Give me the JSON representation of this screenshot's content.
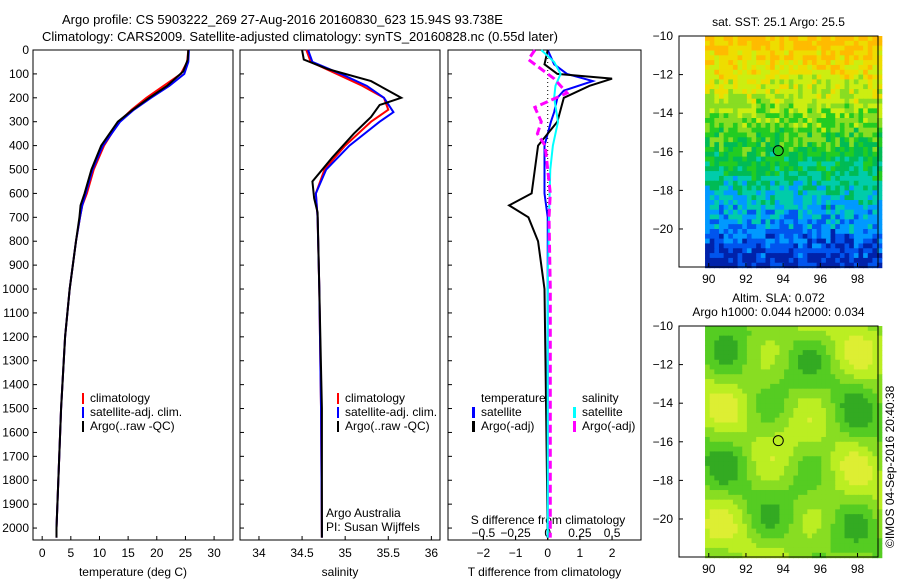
{
  "header": {
    "line1": "Argo profile: CS 5903222_269 27-Aug-2016 20160830_623 15.94S 93.738E",
    "line2": "Climatology: CARS2009. Satellite-adjusted climatology: synTS_20160828.nc (0.55d later)"
  },
  "copyright": "©IMOS 04-Sep-2016 20:40:38",
  "chart_data": [
    {
      "type": "line",
      "name": "temperature",
      "xlabel": "temperature (deg C)",
      "ylabel": "depth",
      "xlim": [
        -1.6,
        33.3
      ],
      "ylim": [
        2050,
        0
      ],
      "xticks": [
        0,
        5,
        10,
        15,
        20,
        25,
        30
      ],
      "yticks": [
        0,
        100,
        200,
        300,
        400,
        500,
        600,
        700,
        800,
        900,
        1000,
        1100,
        1200,
        1300,
        1400,
        1500,
        1600,
        1700,
        1800,
        1900,
        2000
      ],
      "legend": [
        "climatology",
        "satellite-adj. clim.",
        "Argo(..raw -QC)"
      ],
      "series": [
        {
          "name": "climatology",
          "color": "#ff0000",
          "depth": [
            0,
            50,
            100,
            150,
            200,
            250,
            300,
            400,
            500,
            600,
            650,
            700,
            800,
            1000,
            1200,
            1500,
            2000,
            2040
          ],
          "values": [
            25.5,
            25.3,
            24.2,
            21.2,
            18.2,
            15.6,
            13.4,
            10.8,
            9,
            7.8,
            7,
            6.6,
            5.9,
            4.8,
            4.0,
            3.3,
            2.5,
            2.5
          ]
        },
        {
          "name": "satellite-adj. clim.",
          "color": "#0000ff",
          "depth": [
            0,
            50,
            100,
            150,
            200,
            250,
            300,
            400,
            500,
            600,
            650,
            700,
            800,
            1000,
            1200,
            1500,
            2000,
            2040
          ],
          "values": [
            25.6,
            25.5,
            24.8,
            22.2,
            19,
            16,
            13.6,
            10.6,
            8.8,
            7.6,
            7.0,
            6.6,
            5.9,
            4.8,
            4.0,
            3.3,
            2.5,
            2.5
          ]
        },
        {
          "name": "Argo(..raw -QC)",
          "color": "#000000",
          "depth": [
            0,
            40,
            90,
            150,
            200,
            250,
            300,
            400,
            500,
            600,
            650,
            700,
            800,
            1000,
            1200,
            1500,
            2000,
            2040
          ],
          "values": [
            25.5,
            25.4,
            24.6,
            21.8,
            18.7,
            15.8,
            13.2,
            10.3,
            8.6,
            7.4,
            6.7,
            6.5,
            5.9,
            4.8,
            4.0,
            3.3,
            2.5,
            2.5
          ]
        }
      ]
    },
    {
      "type": "line",
      "name": "salinity",
      "xlabel": "salinity",
      "xlim": [
        33.78,
        36.1
      ],
      "ylim": [
        2050,
        0
      ],
      "xticks": [
        34,
        34.5,
        35,
        35.5,
        36
      ],
      "legend": [
        "climatology",
        "satellite-adj. clim.",
        "Argo(..raw -QC)"
      ],
      "annotation": [
        "Argo Australia",
        "PI: Susan Wijffels"
      ],
      "series": [
        {
          "name": "climatology",
          "color": "#ff0000",
          "depth": [
            0,
            50,
            100,
            150,
            200,
            250,
            300,
            400,
            500,
            600,
            700,
            1000,
            1500,
            2040
          ],
          "values": [
            34.55,
            34.6,
            34.9,
            35.2,
            35.45,
            35.5,
            35.3,
            35.0,
            34.76,
            34.66,
            34.68,
            34.7,
            34.72,
            34.73
          ]
        },
        {
          "name": "satellite-adj. clim.",
          "color": "#0000ff",
          "depth": [
            0,
            50,
            100,
            150,
            200,
            260,
            300,
            400,
            500,
            600,
            700,
            1000,
            1500,
            2040
          ],
          "values": [
            34.57,
            34.62,
            34.95,
            35.25,
            35.45,
            35.56,
            35.4,
            35.05,
            34.78,
            34.66,
            34.68,
            34.7,
            34.72,
            34.73
          ]
        },
        {
          "name": "Argo(..raw -QC)",
          "color": "#000000",
          "depth": [
            0,
            40,
            80,
            130,
            180,
            200,
            230,
            280,
            350,
            450,
            550,
            620,
            680,
            1000,
            1500,
            2040
          ],
          "values": [
            34.5,
            34.52,
            34.8,
            35.3,
            35.55,
            35.65,
            35.4,
            35.3,
            35.1,
            34.85,
            34.62,
            34.64,
            34.68,
            34.7,
            34.73,
            34.73
          ]
        }
      ]
    },
    {
      "type": "line",
      "name": "difference",
      "xlabel": "T difference from climatology",
      "x2label": "S difference from climatology",
      "xlim": [
        -3.1,
        2.9
      ],
      "ylim": [
        2050,
        0
      ],
      "xticks": [
        -2,
        -1,
        0,
        1,
        2
      ],
      "x2ticks": [
        -0.5,
        -0.25,
        0,
        0.25,
        0.5
      ],
      "legend_temperature": {
        "title": "temperature",
        "items": [
          "satellite",
          "Argo(-adj)"
        ]
      },
      "legend_salinity": {
        "title": "salinity",
        "items": [
          "satellite",
          "Argo(-adj)"
        ]
      },
      "series": [
        {
          "name": "temperature satellite",
          "color": "#0000ff",
          "units": "T",
          "depth": [
            0,
            60,
            100,
            130,
            170,
            200,
            260,
            300,
            400,
            500,
            600,
            700,
            1000,
            1500,
            2040
          ],
          "values": [
            0,
            0.2,
            0.6,
            1.4,
            0.5,
            0.3,
            0.2,
            0.1,
            -0.1,
            -0.1,
            -0.1,
            0,
            0,
            0,
            0
          ]
        },
        {
          "name": "temperature Argo(-adj)",
          "color": "#000000",
          "depth": [
            0,
            60,
            100,
            120,
            150,
            200,
            250,
            300,
            400,
            500,
            600,
            650,
            700,
            800,
            1000,
            1500,
            2040
          ],
          "units": "T",
          "values": [
            0,
            -0.1,
            0.3,
            2.0,
            1.3,
            0.5,
            0.4,
            0.3,
            -0.3,
            -0.4,
            -0.5,
            -1.2,
            -0.6,
            -0.3,
            -0.1,
            -0.05,
            0
          ]
        },
        {
          "name": "salinity satellite",
          "color": "#00ffff",
          "units": "S",
          "depth": [
            0,
            50,
            100,
            150,
            200,
            300,
            400,
            500,
            700,
            1000,
            2040
          ],
          "values": [
            -0.05,
            0.05,
            0.1,
            0.06,
            0.05,
            0.08,
            0.04,
            0.02,
            0.01,
            0,
            0
          ]
        },
        {
          "name": "salinity Argo(-adj)",
          "color": "#ff00ff",
          "units": "S",
          "depth": [
            0,
            40,
            80,
            120,
            180,
            240,
            300,
            350,
            400,
            500,
            600,
            700,
            1000,
            1500,
            2040
          ],
          "values": [
            -0.1,
            -0.15,
            -0.05,
            0.05,
            0.15,
            -0.1,
            -0.05,
            -0.08,
            -0.02,
            0,
            0.02,
            0.01,
            0.02,
            0.02,
            0.02
          ]
        }
      ]
    },
    {
      "type": "heatmap",
      "name": "sst-map",
      "title": "sat. SST: 25.1 Argo: 25.5",
      "xlim": [
        88.4,
        99.1
      ],
      "ylim": [
        -21.97,
        -10
      ],
      "xticks": [
        90,
        92,
        94,
        96,
        98
      ],
      "yticks": [
        -10,
        -12,
        -14,
        -16,
        -18,
        -20
      ],
      "marker": {
        "lon": 93.738,
        "lat": -15.94
      },
      "palette": [
        "#0022aa",
        "#0055ee",
        "#0099ff",
        "#00ccaa",
        "#00bb55",
        "#22cc22",
        "#88dd22",
        "#ccee11",
        "#eedd00",
        "#ffbb00"
      ]
    },
    {
      "type": "heatmap",
      "name": "sla-map",
      "title": "Altim. SLA: 0.072",
      "subtitle": "Argo h1000: 0.044 h2000: 0.034",
      "xlim": [
        88.4,
        99.1
      ],
      "ylim": [
        -21.97,
        -10
      ],
      "xticks": [
        90,
        92,
        94,
        96,
        98
      ],
      "yticks": [
        -10,
        -12,
        -14,
        -16,
        -18,
        -20
      ],
      "marker": {
        "lon": 93.738,
        "lat": -15.94
      },
      "palette": [
        "#33aa22",
        "#55cc22",
        "#88dd22",
        "#bbee22",
        "#ddee33"
      ]
    }
  ]
}
